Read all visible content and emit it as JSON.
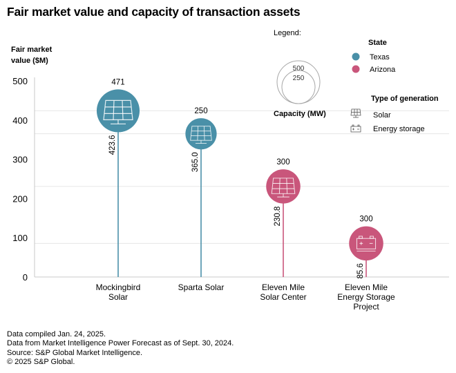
{
  "title": "Fair market value and capacity of transaction assets",
  "chart_data": {
    "type": "scatter",
    "subtype": "lollipop-bubble",
    "title": "Fair market value and capacity of transaction assets",
    "ylabel": "Fair market value ($M)",
    "xlabel": "",
    "ylim": [
      0,
      500
    ],
    "yticks": [
      0,
      100,
      200,
      300,
      400,
      500
    ],
    "grid": "reference lines at each value",
    "categories": [
      "Mockingbird Solar",
      "Sparta Solar",
      "Eleven Mile Solar Center",
      "Eleven Mile Energy Storage Project"
    ],
    "category_lines": [
      [
        "Mockingbird",
        "Solar"
      ],
      [
        "Sparta Solar"
      ],
      [
        "Eleven Mile",
        "Solar Center"
      ],
      [
        "Eleven Mile",
        "Energy Storage",
        "Project"
      ]
    ],
    "points": [
      {
        "name": "Mockingbird Solar",
        "value": 423.6,
        "value_label": "423.6",
        "capacity_mw": 471,
        "state": "Texas",
        "type": "Solar"
      },
      {
        "name": "Sparta Solar",
        "value": 365.0,
        "value_label": "365.0",
        "capacity_mw": 250,
        "state": "Texas",
        "type": "Solar"
      },
      {
        "name": "Eleven Mile Solar Center",
        "value": 230.8,
        "value_label": "230.8",
        "capacity_mw": 300,
        "state": "Arizona",
        "type": "Solar"
      },
      {
        "name": "Eleven Mile Energy Storage Project",
        "value": 85.6,
        "value_label": "85.6",
        "capacity_mw": 300,
        "state": "Arizona",
        "type": "Energy storage"
      }
    ],
    "colors": {
      "Texas": "#4a90a8",
      "Arizona": "#c9567b",
      "grid": "#e6e6e6",
      "axis": "#c8c8c8",
      "legend_circle": "#a6a6a6"
    },
    "legend": {
      "heading": "Legend:",
      "size_title": "Capacity (MW)",
      "size_refs": [
        500,
        250
      ],
      "state_title": "State",
      "states": [
        {
          "label": "Texas"
        },
        {
          "label": "Arizona"
        }
      ],
      "type_title": "Type of generation",
      "types": [
        {
          "label": "Solar",
          "icon": "solar-panel-icon"
        },
        {
          "label": "Energy storage",
          "icon": "battery-icon"
        }
      ],
      "placement": "top-right"
    }
  },
  "footer": [
    "Data compiled Jan. 24, 2025.",
    "Data from Market Intelligence Power Forecast as of Sept. 30, 2024.",
    "Source: S&P Global Market Intelligence.",
    "© 2025 S&P Global."
  ]
}
